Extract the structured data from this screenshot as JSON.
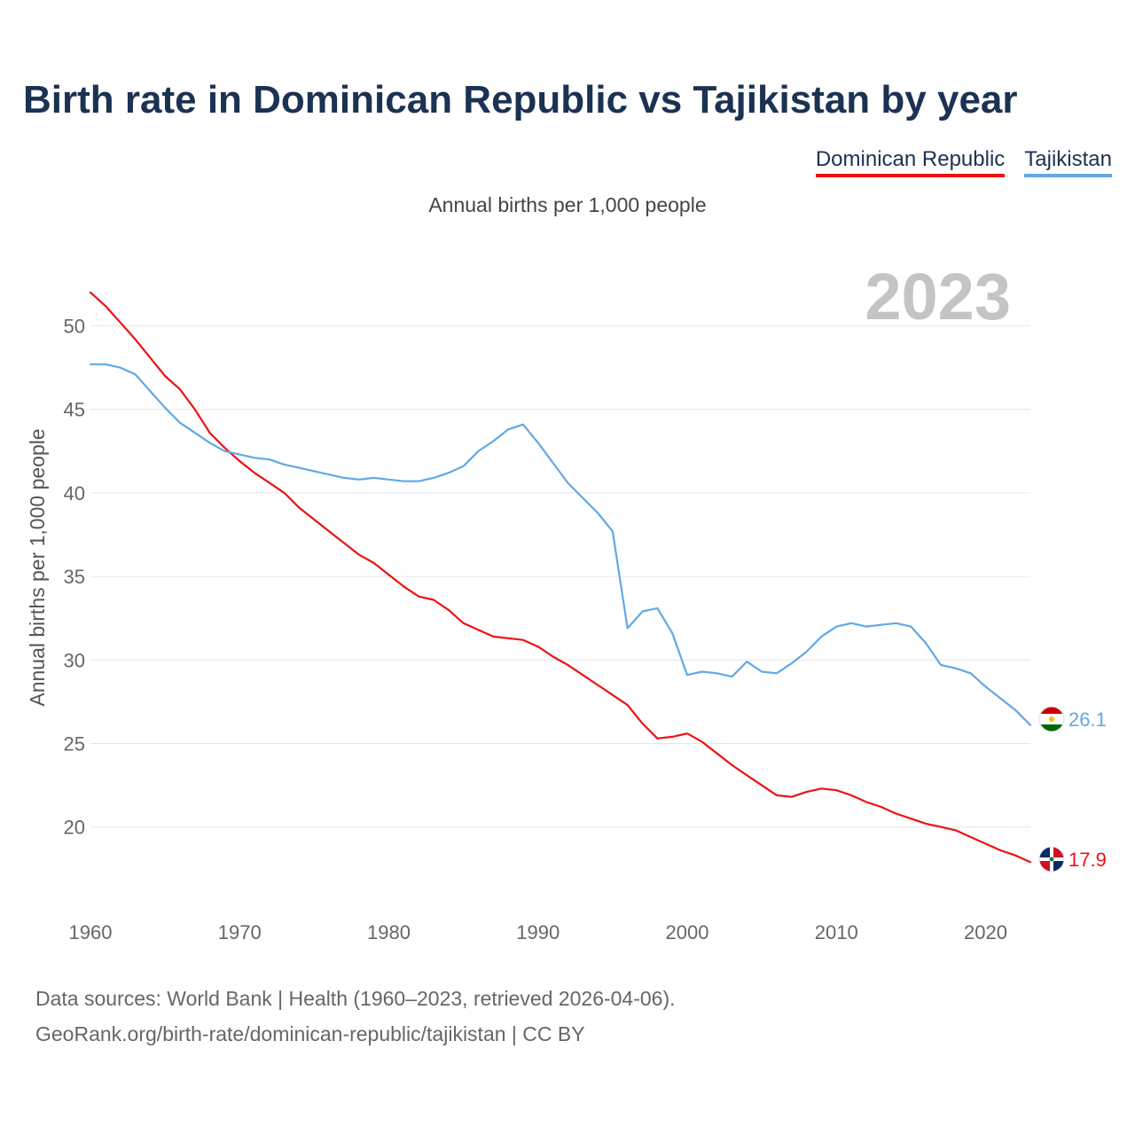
{
  "title": "Birth rate in Dominican Republic vs Tajikistan by year",
  "legend": [
    {
      "label": "Dominican Republic",
      "color": "#ee1111"
    },
    {
      "label": "Tajikistan",
      "color": "#62a8e5"
    }
  ],
  "subtitle": "Annual births per 1,000 people",
  "footer": {
    "line1": "Data sources: World Bank | Health (1960–2023, retrieved 2026-04-06).",
    "line2": "GeoRank.org/birth-rate/dominican-republic/tajikistan | CC BY"
  },
  "chart_data": {
    "type": "line",
    "title": "Birth rate in Dominican Republic vs Tajikistan by year",
    "xlabel": "",
    "ylabel": "Annual births per 1,000 people",
    "xlim": [
      1960,
      2023
    ],
    "ylim": [
      16,
      53
    ],
    "x_ticks": [
      1960,
      1970,
      1980,
      1990,
      2000,
      2010,
      2020
    ],
    "y_ticks": [
      20,
      25,
      30,
      35,
      40,
      45,
      50
    ],
    "year_label": "2023",
    "grid": true,
    "x": [
      1960,
      1961,
      1962,
      1963,
      1964,
      1965,
      1966,
      1967,
      1968,
      1969,
      1970,
      1971,
      1972,
      1973,
      1974,
      1975,
      1976,
      1977,
      1978,
      1979,
      1980,
      1981,
      1982,
      1983,
      1984,
      1985,
      1986,
      1987,
      1988,
      1989,
      1990,
      1991,
      1992,
      1993,
      1994,
      1995,
      1996,
      1997,
      1998,
      1999,
      2000,
      2001,
      2002,
      2003,
      2004,
      2005,
      2006,
      2007,
      2008,
      2009,
      2010,
      2011,
      2012,
      2013,
      2014,
      2015,
      2016,
      2017,
      2018,
      2019,
      2020,
      2021,
      2022,
      2023
    ],
    "series": [
      {
        "name": "Dominican Republic",
        "color": "#ee1111",
        "end_label": "17.9",
        "flag": "dominican-republic-flag-icon",
        "values": [
          52.0,
          51.2,
          50.2,
          49.2,
          48.1,
          47.0,
          46.2,
          45.0,
          43.6,
          42.7,
          41.9,
          41.2,
          40.6,
          40.0,
          39.1,
          38.4,
          37.7,
          37.0,
          36.3,
          35.8,
          35.1,
          34.4,
          33.8,
          33.6,
          33.0,
          32.2,
          31.8,
          31.4,
          31.3,
          31.2,
          30.8,
          30.2,
          29.7,
          29.1,
          28.5,
          27.9,
          27.3,
          26.2,
          25.3,
          25.4,
          25.6,
          25.1,
          24.4,
          23.7,
          23.1,
          22.5,
          21.9,
          21.8,
          22.1,
          22.3,
          22.2,
          21.9,
          21.5,
          21.2,
          20.8,
          20.5,
          20.2,
          20.0,
          19.8,
          19.4,
          19.0,
          18.6,
          18.3,
          17.9
        ]
      },
      {
        "name": "Tajikistan",
        "color": "#62a8e5",
        "end_label": "26.1",
        "flag": "tajikistan-flag-icon",
        "values": [
          47.7,
          47.7,
          47.5,
          47.1,
          46.1,
          45.1,
          44.2,
          43.6,
          43.0,
          42.5,
          42.3,
          42.1,
          42.0,
          41.7,
          41.5,
          41.3,
          41.1,
          40.9,
          40.8,
          40.9,
          40.8,
          40.7,
          40.7,
          40.9,
          41.2,
          41.6,
          42.5,
          43.1,
          43.8,
          44.1,
          43.0,
          41.8,
          40.6,
          39.7,
          38.8,
          37.7,
          31.9,
          32.9,
          33.1,
          31.6,
          29.1,
          29.3,
          29.2,
          29.0,
          29.9,
          29.3,
          29.2,
          29.8,
          30.5,
          31.4,
          32.0,
          32.2,
          32.0,
          32.1,
          32.2,
          32.0,
          31.0,
          29.7,
          29.5,
          29.2,
          28.4,
          27.7,
          27.0,
          26.1
        ]
      }
    ]
  }
}
